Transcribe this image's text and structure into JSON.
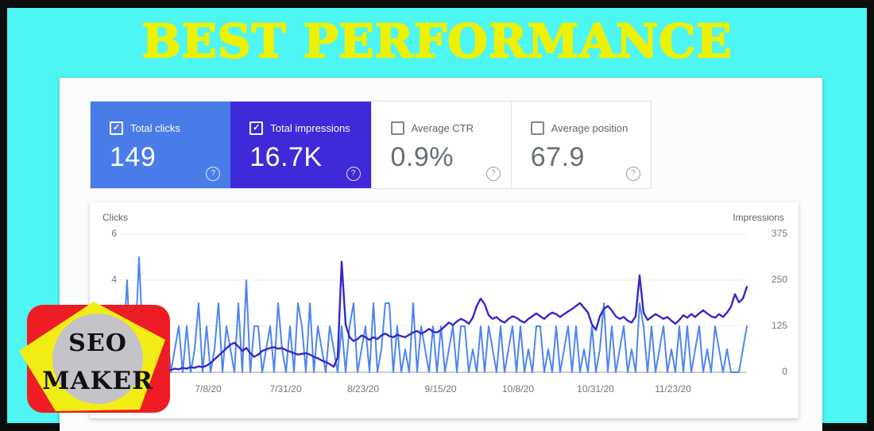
{
  "banner": {
    "title": "BEST PERFORMANCE"
  },
  "summary_cards": [
    {
      "label": "Total clicks",
      "value": "149",
      "checked": true,
      "bg_color": "#4a7ce9",
      "help": "?"
    },
    {
      "label": "Total impressions",
      "value": "16.7K",
      "checked": true,
      "bg_color": "#3e2ad9",
      "help": "?"
    },
    {
      "label": "Average CTR",
      "value": "0.9%",
      "checked": false,
      "bg_color": "",
      "help": "?"
    },
    {
      "label": "Average position",
      "value": "67.9",
      "checked": false,
      "bg_color": "",
      "help": "?"
    }
  ],
  "chart_data": {
    "type": "line",
    "grid": true,
    "legend_position": "none",
    "left_axis": {
      "label": "Clicks",
      "ticks": [
        "6",
        "4"
      ],
      "range": [
        0,
        6
      ]
    },
    "right_axis": {
      "label": "Impressions",
      "ticks": [
        "375",
        "250",
        "125",
        "0"
      ],
      "range": [
        0,
        375
      ]
    },
    "x_labels": [
      "7/8/20",
      "7/31/20",
      "8/23/20",
      "9/15/20",
      "10/8/20",
      "10/31/20",
      "11/23/20"
    ],
    "series": [
      {
        "name": "Clicks",
        "axis": "left",
        "max": 6,
        "color": "#4e86ee",
        "values": [
          0,
          1,
          4,
          0,
          1,
          5,
          1,
          0,
          2,
          0,
          1,
          0,
          2,
          0,
          1,
          2,
          0,
          2,
          0,
          1,
          3,
          0,
          2,
          0,
          1,
          3,
          0,
          2,
          1,
          0,
          3,
          0,
          4,
          0,
          2,
          2,
          0,
          1,
          2,
          0,
          3,
          1,
          0,
          2,
          0,
          3,
          2,
          0,
          3,
          0,
          2,
          1,
          0,
          2,
          1,
          0,
          2,
          0,
          2,
          3,
          0,
          1,
          2,
          0,
          3,
          0,
          1,
          3,
          3,
          0,
          2,
          0,
          1,
          0,
          3,
          0,
          2,
          1,
          0,
          2,
          0,
          2,
          0,
          1,
          2,
          0,
          2,
          2,
          0,
          1,
          0,
          2,
          0,
          2,
          1,
          0,
          2,
          0,
          1,
          2,
          0,
          2,
          0,
          1,
          0,
          2,
          2,
          0,
          1,
          0,
          2,
          0,
          1,
          2,
          0,
          2,
          0,
          1,
          0,
          2,
          0,
          1,
          3,
          0,
          2,
          0,
          1,
          2,
          0,
          1,
          0,
          3,
          2,
          0,
          2,
          0,
          1,
          2,
          0,
          1,
          0,
          2,
          0,
          2,
          0,
          1,
          2,
          0,
          1,
          0,
          2,
          1,
          0,
          1,
          0,
          0,
          0,
          1,
          2
        ]
      },
      {
        "name": "Impressions",
        "axis": "right",
        "max": 375,
        "color": "#3527cd",
        "values": [
          3,
          2,
          5,
          3,
          6,
          8,
          4,
          3,
          5,
          4,
          6,
          5,
          8,
          6,
          10,
          8,
          12,
          10,
          14,
          12,
          16,
          14,
          18,
          25,
          35,
          45,
          55,
          65,
          75,
          80,
          70,
          58,
          66,
          52,
          42,
          48,
          58,
          62,
          66,
          68,
          64,
          66,
          60,
          56,
          52,
          48,
          50,
          52,
          48,
          42,
          38,
          32,
          28,
          22,
          15,
          40,
          300,
          130,
          95,
          85,
          90,
          100,
          95,
          88,
          95,
          90,
          100,
          105,
          98,
          95,
          102,
          98,
          95,
          102,
          108,
          112,
          105,
          110,
          118,
          110,
          108,
          115,
          125,
          135,
          128,
          138,
          145,
          140,
          132,
          148,
          180,
          200,
          185,
          155,
          145,
          150,
          140,
          135,
          145,
          152,
          148,
          140,
          135,
          145,
          152,
          160,
          152,
          145,
          155,
          162,
          158,
          150,
          158,
          165,
          172,
          180,
          188,
          175,
          162,
          130,
          115,
          152,
          172,
          180,
          168,
          152,
          145,
          150,
          140,
          135,
          152,
          263,
          162,
          142,
          150,
          158,
          152,
          145,
          150,
          140,
          132,
          142,
          155,
          148,
          158,
          150,
          160,
          168,
          160,
          152,
          148,
          158,
          150,
          162,
          178,
          212,
          190,
          200,
          232
        ]
      }
    ]
  },
  "logo": {
    "line1": "SEO",
    "line2": "MAKER",
    "colors": {
      "bg": "#ee1c24",
      "pentagon": "#f2ee15",
      "circle": "#c4c3c8",
      "text": "#111111"
    }
  },
  "colors": {
    "frame": "#0d0d0d",
    "background": "#4df5f3",
    "title": "#edf103",
    "grid": "#ececec",
    "baseline": "#9e9e9e"
  }
}
